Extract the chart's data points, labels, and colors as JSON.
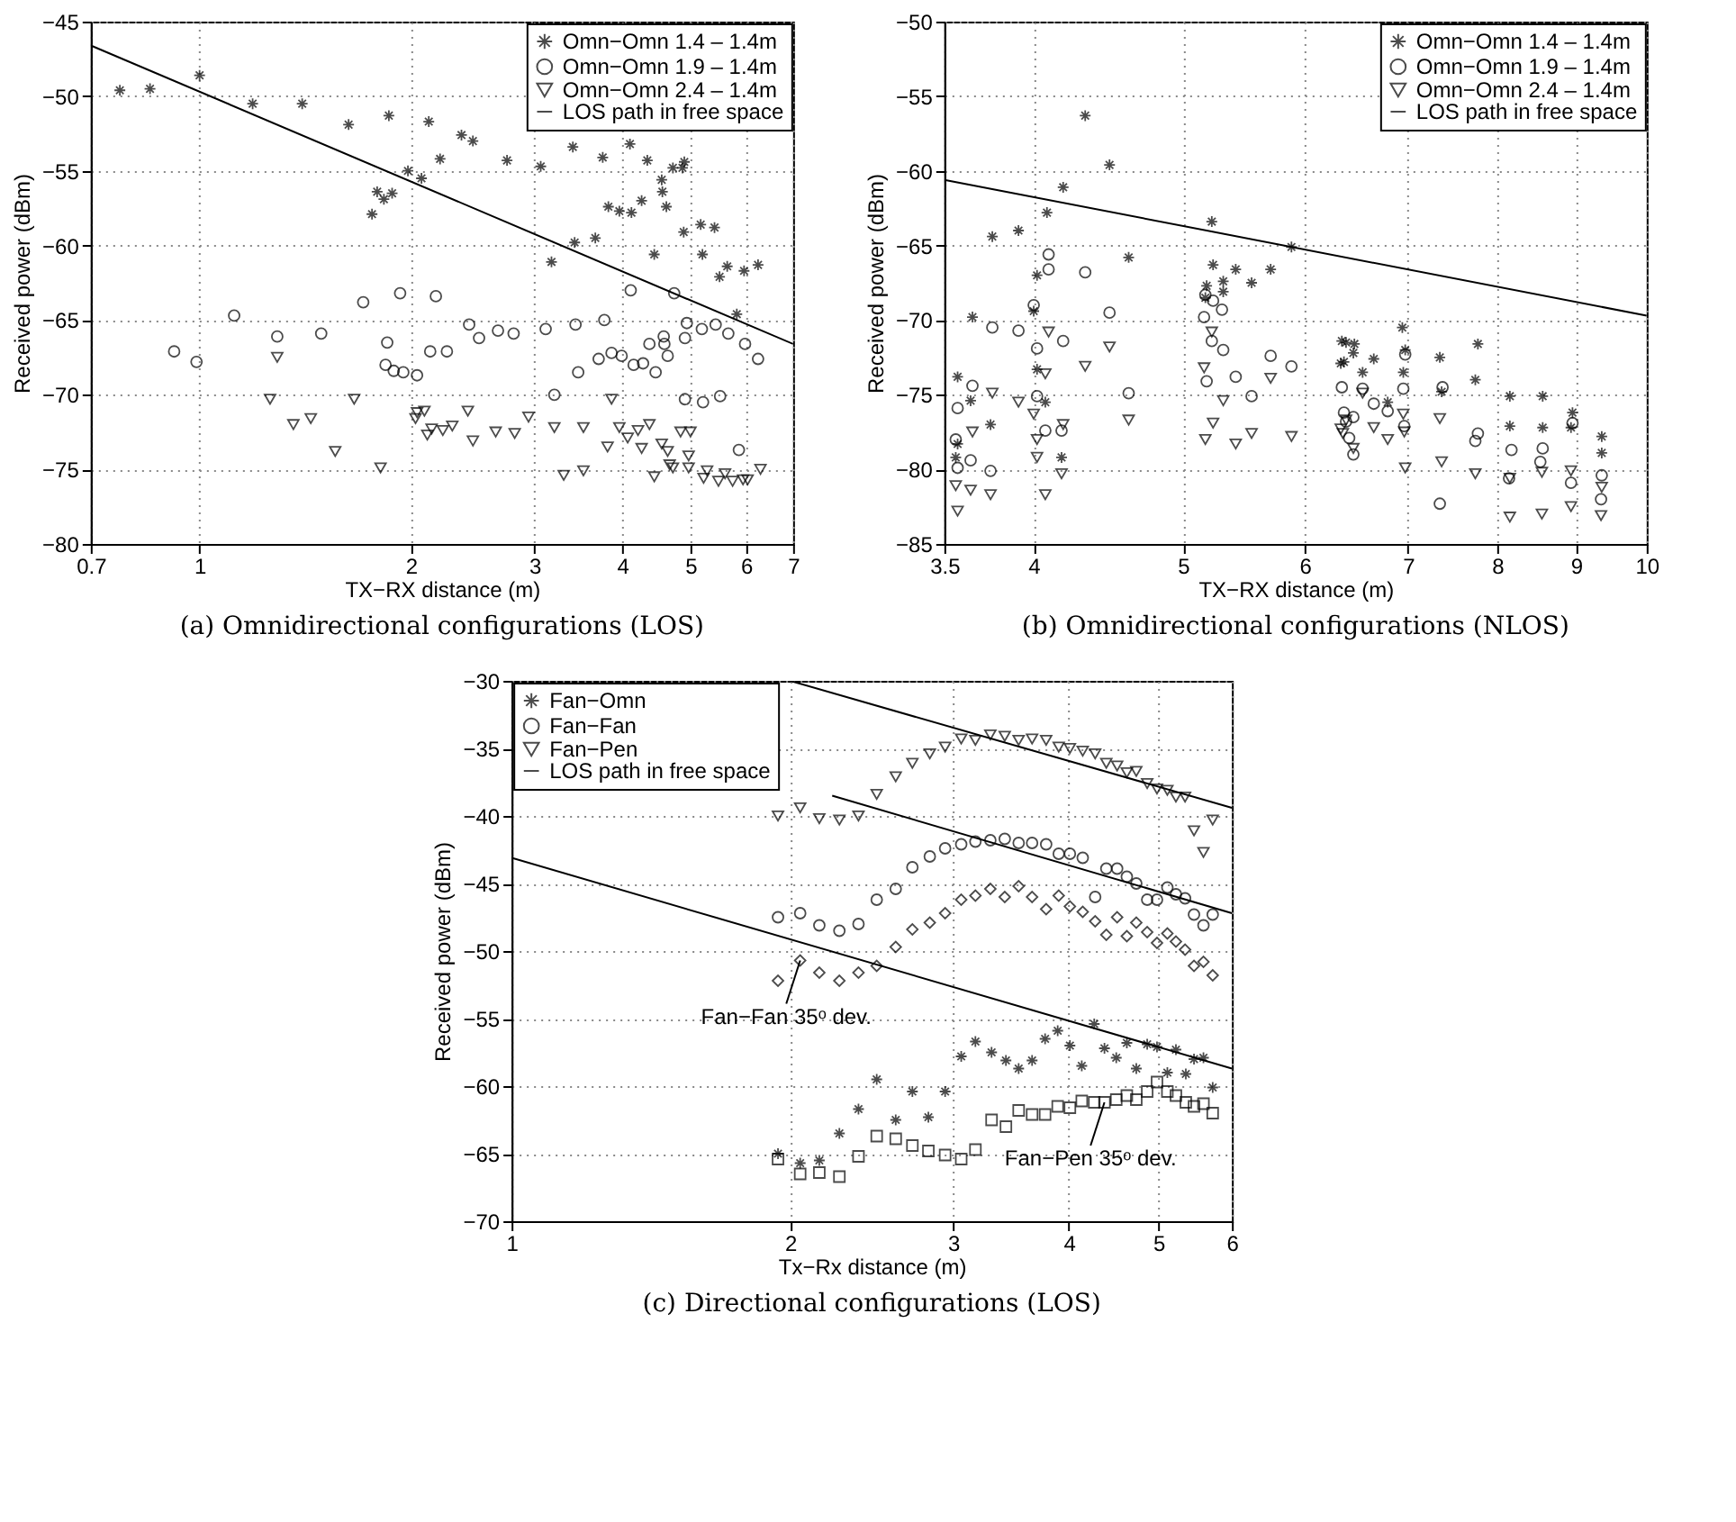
{
  "chart_data": [
    {
      "type": "scatter",
      "title": "(a) Omnidirectional configurations (LOS)",
      "xlabel": "TX−RX distance (m)",
      "ylabel": "Received power (dBm)",
      "log": "x",
      "grid": true,
      "legend": "top right",
      "xlim": [
        0.7,
        7
      ],
      "xticks": [
        0.7,
        1,
        2,
        3,
        4,
        5,
        6,
        7
      ],
      "ylim": [
        -80,
        -45
      ],
      "yticks": [
        -80,
        -75,
        -70,
        -65,
        -60,
        -55,
        -50,
        -45
      ],
      "series": [
        {
          "name": "Omn−Omn 1.4 – 1.4m",
          "color": "#000000",
          "marker": "cross",
          "x": [
            0.77,
            0.85,
            1.0,
            1.19,
            1.4,
            1.63,
            1.76,
            1.79,
            1.83,
            1.86,
            1.88,
            1.98,
            2.07,
            2.12,
            2.2,
            2.36,
            2.45,
            2.74,
            3.06,
            3.17,
            3.4,
            3.42,
            3.66,
            3.75,
            3.82,
            3.96,
            4.1,
            4.12,
            4.26,
            4.34,
            4.44,
            4.55,
            4.56,
            4.62,
            4.72,
            4.87,
            4.9,
            4.89,
            5.17,
            5.2,
            5.41,
            5.5,
            5.64,
            5.82,
            5.96,
            6.24
          ],
          "values": [
            -49.6,
            -49.5,
            -48.6,
            -50.5,
            -50.5,
            -51.9,
            -57.9,
            -56.4,
            -56.9,
            -51.3,
            -56.5,
            -55.0,
            -55.5,
            -51.7,
            -54.2,
            -52.6,
            -53.0,
            -54.3,
            -54.7,
            -61.1,
            -53.4,
            -59.8,
            -59.5,
            -54.1,
            -57.4,
            -57.7,
            -53.2,
            -57.8,
            -57.0,
            -54.3,
            -60.6,
            -55.6,
            -56.4,
            -57.4,
            -54.8,
            -54.8,
            -54.4,
            -59.1,
            -58.6,
            -60.6,
            -58.8,
            -62.1,
            -61.4,
            -64.6,
            -61.7,
            -61.3
          ]
        },
        {
          "name": "Omn−Omn 1.9 – 1.4m",
          "color": "#000000",
          "marker": "circle",
          "x": [
            0.92,
            0.99,
            1.12,
            1.29,
            1.49,
            1.71,
            1.85,
            1.84,
            1.89,
            1.95,
            1.93,
            2.04,
            2.13,
            2.17,
            2.25,
            2.42,
            2.5,
            2.66,
            2.8,
            3.11,
            3.2,
            3.43,
            3.46,
            3.7,
            3.77,
            3.86,
            3.99,
            4.11,
            4.15,
            4.28,
            4.37,
            4.46,
            4.58,
            4.59,
            4.64,
            4.74,
            4.91,
            4.94,
            4.91,
            5.19,
            5.21,
            5.43,
            5.51,
            5.66,
            5.86,
            5.98,
            6.24
          ],
          "values": [
            -67.1,
            -67.8,
            -64.7,
            -66.1,
            -65.9,
            -63.8,
            -66.5,
            -68.0,
            -68.4,
            -68.5,
            -63.2,
            -68.7,
            -67.1,
            -63.4,
            -67.1,
            -65.3,
            -66.2,
            -65.7,
            -65.9,
            -65.6,
            -70.0,
            -65.3,
            -68.5,
            -67.6,
            -65.0,
            -67.2,
            -67.4,
            -63.0,
            -68.0,
            -67.9,
            -66.6,
            -68.5,
            -66.1,
            -66.6,
            -67.4,
            -63.2,
            -66.2,
            -65.2,
            -70.3,
            -65.6,
            -70.5,
            -65.3,
            -70.1,
            -65.9,
            -73.7,
            -66.6,
            -67.6
          ]
        },
        {
          "name": "Omn−Omn 2.4 – 1.4m",
          "color": "#000000",
          "marker": "triangle",
          "x": [
            1.29,
            1.26,
            1.36,
            1.44,
            1.56,
            1.66,
            1.81,
            2.03,
            2.04,
            2.09,
            2.11,
            2.14,
            2.22,
            2.29,
            2.41,
            2.45,
            2.64,
            2.81,
            2.94,
            3.2,
            3.3,
            3.52,
            3.52,
            3.81,
            3.86,
            3.96,
            4.07,
            4.21,
            4.26,
            4.37,
            4.44,
            4.55,
            4.64,
            4.67,
            4.72,
            4.84,
            5.0,
            4.97,
            4.97,
            5.22,
            5.28,
            5.48,
            5.6,
            5.74,
            5.94,
            6.03,
            6.29
          ],
          "values": [
            -67.5,
            -70.3,
            -72.0,
            -71.6,
            -73.8,
            -70.3,
            -74.9,
            -71.6,
            -71.2,
            -71.1,
            -72.7,
            -72.3,
            -72.4,
            -72.1,
            -71.1,
            -73.1,
            -72.5,
            -72.6,
            -71.5,
            -72.2,
            -75.4,
            -72.2,
            -75.1,
            -73.5,
            -70.3,
            -72.2,
            -72.9,
            -72.4,
            -73.6,
            -72.0,
            -75.5,
            -73.3,
            -73.8,
            -74.7,
            -74.9,
            -72.5,
            -72.5,
            -74.1,
            -74.9,
            -75.6,
            -75.1,
            -75.8,
            -75.3,
            -75.8,
            -75.7,
            -75.7,
            -75.0
          ]
        },
        {
          "name": "LOS path in free space",
          "color": "#000000",
          "type": "line",
          "x": [
            0.7,
            7
          ],
          "values": [
            -46.6,
            -66.6
          ]
        }
      ]
    },
    {
      "type": "scatter",
      "title": "(b) Omnidirectional configurations (NLOS)",
      "xlabel": "TX−RX distance (m)",
      "ylabel": "Received power (dBm)",
      "log": "x",
      "grid": true,
      "legend": "top right",
      "xlim": [
        3.5,
        10
      ],
      "xticks": [
        3.5,
        4,
        5,
        6,
        7,
        8,
        9,
        10
      ],
      "ylim": [
        -85,
        -50
      ],
      "yticks": [
        -85,
        -80,
        -75,
        -70,
        -65,
        -60,
        -55,
        -50
      ],
      "series": [
        {
          "name": "Omn−Omn 1.4 – 1.4m",
          "color": "#000000",
          "marker": "cross",
          "x": [
            3.56,
            3.57,
            3.57,
            3.64,
            3.65,
            3.75,
            3.76,
            3.91,
            4.0,
            4.02,
            4.02,
            4.07,
            4.08,
            4.17,
            4.18,
            4.32,
            4.48,
            4.61,
            5.17,
            5.18,
            5.22,
            5.23,
            5.31,
            5.31,
            5.41,
            5.54,
            5.7,
            5.88,
            6.33,
            6.34,
            6.36,
            6.38,
            6.45,
            6.46,
            6.54,
            6.65,
            6.79,
            6.94,
            6.95,
            6.97,
            7.34,
            7.36,
            7.74,
            7.77,
            8.15,
            8.15,
            8.56,
            8.56,
            8.95,
            8.93,
            9.35,
            9.35
          ],
          "values": [
            -79.2,
            -78.3,
            -73.8,
            -75.4,
            -69.8,
            -77.0,
            -64.4,
            -64.0,
            -69.4,
            -67.0,
            -73.3,
            -75.5,
            -62.8,
            -79.2,
            -61.1,
            -56.3,
            -59.6,
            -65.8,
            -68.5,
            -67.7,
            -63.4,
            -66.3,
            -68.1,
            -67.4,
            -66.6,
            -67.5,
            -66.6,
            -65.1,
            -72.9,
            -71.4,
            -72.8,
            -71.5,
            -72.2,
            -71.6,
            -73.5,
            -72.6,
            -75.5,
            -70.5,
            -73.5,
            -72.0,
            -72.5,
            -74.8,
            -74.0,
            -71.6,
            -75.1,
            -77.1,
            -75.1,
            -77.2,
            -76.2,
            -77.2,
            -77.8,
            -78.9
          ]
        },
        {
          "name": "Omn−Omn 1.9 – 1.4m",
          "color": "#000000",
          "marker": "circle",
          "x": [
            3.56,
            3.57,
            3.57,
            3.64,
            3.65,
            3.75,
            3.76,
            3.91,
            4.0,
            4.02,
            4.02,
            4.07,
            4.09,
            4.09,
            4.18,
            4.17,
            4.32,
            4.48,
            4.61,
            5.16,
            5.17,
            5.18,
            5.23,
            5.22,
            5.3,
            5.31,
            5.41,
            5.54,
            5.7,
            5.88,
            6.34,
            6.36,
            6.38,
            6.41,
            6.45,
            6.45,
            6.54,
            6.65,
            6.79,
            6.95,
            6.96,
            6.97,
            7.34,
            7.37,
            7.74,
            7.77,
            8.14,
            8.17,
            8.53,
            8.56,
            8.93,
            8.95,
            9.34,
            9.35
          ],
          "values": [
            -78.0,
            -79.9,
            -75.9,
            -79.4,
            -74.4,
            -80.1,
            -70.5,
            -70.7,
            -69.0,
            -75.1,
            -71.9,
            -77.4,
            -65.6,
            -66.6,
            -71.4,
            -77.4,
            -66.8,
            -69.5,
            -74.9,
            -69.8,
            -68.3,
            -74.1,
            -68.7,
            -71.4,
            -69.3,
            -72.0,
            -73.8,
            -75.1,
            -72.4,
            -73.1,
            -74.5,
            -76.2,
            -76.8,
            -77.9,
            -76.5,
            -79.0,
            -74.6,
            -75.6,
            -76.1,
            -74.6,
            -77.1,
            -72.3,
            -82.3,
            -74.5,
            -78.1,
            -77.6,
            -80.6,
            -78.7,
            -79.5,
            -78.6,
            -80.9,
            -76.9,
            -82.0,
            -80.4
          ]
        },
        {
          "name": "Omn−Omn 2.4 – 1.4m",
          "color": "#000000",
          "marker": "triangle",
          "x": [
            3.56,
            3.57,
            3.64,
            3.65,
            3.75,
            3.76,
            3.91,
            4.0,
            4.02,
            4.02,
            4.07,
            4.07,
            4.09,
            4.17,
            4.18,
            4.32,
            4.48,
            4.61,
            5.16,
            5.17,
            5.22,
            5.23,
            5.31,
            5.41,
            5.54,
            5.7,
            5.88,
            6.33,
            6.35,
            6.38,
            6.45,
            6.54,
            6.65,
            6.79,
            6.95,
            6.96,
            6.97,
            7.34,
            7.36,
            7.74,
            8.15,
            8.15,
            8.55,
            8.55,
            8.93,
            8.93,
            9.35,
            9.34
          ],
          "values": [
            -81.1,
            -82.8,
            -81.4,
            -77.5,
            -81.7,
            -74.9,
            -75.5,
            -76.3,
            -78.0,
            -79.2,
            -73.6,
            -81.7,
            -70.8,
            -80.3,
            -77.0,
            -73.1,
            -71.8,
            -76.7,
            -73.2,
            -78.0,
            -70.8,
            -76.9,
            -75.4,
            -78.3,
            -77.6,
            -73.9,
            -77.8,
            -77.3,
            -77.6,
            -76.7,
            -78.6,
            -74.9,
            -77.2,
            -78.0,
            -76.3,
            -77.5,
            -79.9,
            -76.6,
            -79.5,
            -80.3,
            -80.6,
            -83.2,
            -80.2,
            -83.0,
            -80.1,
            -82.5,
            -81.2,
            -83.1
          ]
        },
        {
          "name": "LOS path in free space",
          "color": "#000000",
          "type": "line",
          "x": [
            3.5,
            10
          ],
          "values": [
            -60.6,
            -69.7
          ]
        }
      ]
    },
    {
      "type": "scatter",
      "title": "(c) Directional configurations (LOS)",
      "xlabel": "Tx−Rx distance (m)",
      "ylabel": "Received power (dBm)",
      "log": "x",
      "grid": true,
      "legend": "top left",
      "xlim": [
        1,
        6
      ],
      "xticks": [
        1,
        2,
        3,
        4,
        5,
        6
      ],
      "ylim": [
        -70,
        -30
      ],
      "yticks": [
        -70,
        -65,
        -60,
        -55,
        -50,
        -45,
        -40,
        -35,
        -30
      ],
      "annotations": [
        {
          "text": "Fan−Fan 35ᵒ dev.",
          "x": 2.05,
          "y": -50.7
        },
        {
          "text": "Fan−Pen 35ᵒ dev.",
          "x": 4.37,
          "y": -61.2
        }
      ],
      "series": [
        {
          "name": "Fan−Omn",
          "color": "#000000",
          "marker": "cross",
          "x": [
            1.94,
            2.05,
            2.15,
            2.26,
            2.37,
            2.48,
            2.6,
            2.71,
            2.82,
            2.94,
            3.06,
            3.17,
            3.3,
            3.42,
            3.53,
            3.65,
            3.77,
            3.89,
            4.01,
            4.13,
            4.26,
            4.37,
            4.5,
            4.62,
            4.73,
            4.86,
            4.98,
            5.11,
            5.22,
            5.35,
            5.46,
            5.59,
            5.72
          ],
          "values": [
            -65.0,
            -65.7,
            -65.5,
            -63.5,
            -61.7,
            -59.5,
            -62.5,
            -60.4,
            -62.3,
            -60.4,
            -57.8,
            -56.7,
            -57.5,
            -58.1,
            -58.7,
            -58.1,
            -56.5,
            -55.9,
            -57.0,
            -58.5,
            -55.4,
            -57.2,
            -57.9,
            -56.8,
            -58.7,
            -56.9,
            -57.1,
            -59.0,
            -57.3,
            -59.1,
            -58.0,
            -57.9,
            -60.1
          ]
        },
        {
          "name": "Fan−Fan",
          "color": "#000000",
          "marker": "circle",
          "x": [
            1.94,
            2.05,
            2.15,
            2.26,
            2.37,
            2.48,
            2.6,
            2.71,
            2.83,
            2.94,
            3.06,
            3.17,
            3.29,
            3.41,
            3.53,
            3.65,
            3.78,
            3.9,
            4.01,
            4.14,
            4.27,
            4.39,
            4.51,
            4.62,
            4.73,
            4.86,
            4.98,
            5.11,
            5.22,
            5.34,
            5.46,
            5.59,
            5.72
          ],
          "values": [
            -47.5,
            -47.2,
            -48.1,
            -48.5,
            -48.0,
            -46.2,
            -45.4,
            -43.8,
            -43.0,
            -42.4,
            -42.1,
            -41.9,
            -41.8,
            -41.7,
            -42.0,
            -42.0,
            -42.1,
            -42.8,
            -42.8,
            -43.1,
            -46.0,
            -43.9,
            -43.9,
            -44.5,
            -45.0,
            -46.2,
            -46.2,
            -45.3,
            -45.8,
            -46.1,
            -47.3,
            -48.1,
            -47.3
          ]
        },
        {
          "name": "Fan−Pen",
          "color": "#000000",
          "marker": "triangle",
          "x": [
            1.94,
            2.05,
            2.15,
            2.26,
            2.37,
            2.48,
            2.6,
            2.71,
            2.83,
            2.94,
            3.06,
            3.17,
            3.29,
            3.41,
            3.53,
            3.65,
            3.78,
            3.9,
            4.01,
            4.14,
            4.27,
            4.39,
            4.51,
            4.62,
            4.73,
            4.86,
            4.98,
            5.11,
            5.22,
            5.34,
            5.46,
            5.59,
            5.72
          ],
          "values": [
            -40.0,
            -39.4,
            -40.2,
            -40.3,
            -40.0,
            -38.4,
            -37.1,
            -36.1,
            -35.4,
            -34.9,
            -34.3,
            -34.4,
            -34.0,
            -34.1,
            -34.4,
            -34.3,
            -34.4,
            -34.9,
            -35.0,
            -35.2,
            -35.4,
            -36.1,
            -36.3,
            -36.8,
            -36.7,
            -37.6,
            -38.0,
            -38.1,
            -38.6,
            -38.6,
            -41.1,
            -42.7,
            -40.3
          ]
        },
        {
          "color": "#000000",
          "marker": "diamond",
          "x": [
            1.94,
            2.05,
            2.15,
            2.26,
            2.37,
            2.48,
            2.6,
            2.71,
            2.83,
            2.94,
            3.06,
            3.17,
            3.29,
            3.41,
            3.53,
            3.65,
            3.78,
            3.9,
            4.01,
            4.14,
            4.27,
            4.39,
            4.51,
            4.62,
            4.73,
            4.86,
            4.98,
            5.11,
            5.22,
            5.34,
            5.46,
            5.59,
            5.72
          ],
          "values": [
            -52.2,
            -50.7,
            -51.6,
            -52.2,
            -51.6,
            -51.1,
            -49.7,
            -48.4,
            -47.9,
            -47.2,
            -46.2,
            -45.9,
            -45.4,
            -46.0,
            -45.2,
            -46.0,
            -46.9,
            -45.9,
            -46.7,
            -47.1,
            -47.8,
            -48.8,
            -47.5,
            -48.9,
            -47.9,
            -48.6,
            -49.4,
            -48.7,
            -49.3,
            -49.9,
            -51.1,
            -50.8,
            -51.8
          ]
        },
        {
          "color": "#000000",
          "marker": "square",
          "x": [
            1.94,
            2.05,
            2.15,
            2.26,
            2.37,
            2.48,
            2.6,
            2.71,
            2.82,
            2.94,
            3.06,
            3.17,
            3.3,
            3.42,
            3.53,
            3.65,
            3.77,
            3.89,
            4.01,
            4.13,
            4.26,
            4.37,
            4.5,
            4.62,
            4.73,
            4.86,
            4.98,
            5.11,
            5.22,
            5.35,
            5.46,
            5.59,
            5.72
          ],
          "values": [
            -65.4,
            -66.5,
            -66.4,
            -66.7,
            -65.2,
            -63.7,
            -63.9,
            -64.4,
            -64.8,
            -65.1,
            -65.4,
            -64.7,
            -62.5,
            -63.0,
            -61.8,
            -62.1,
            -62.1,
            -61.5,
            -61.6,
            -61.1,
            -61.2,
            -61.2,
            -61.0,
            -60.7,
            -61.0,
            -60.4,
            -59.7,
            -60.4,
            -60.7,
            -61.2,
            -61.5,
            -61.3,
            -62.0
          ]
        },
        {
          "name": "LOS path in free space",
          "color": "#000000",
          "type": "line",
          "x": [
            2,
            6
          ],
          "values": [
            -30,
            -39.4
          ]
        },
        {
          "color": "#000000",
          "type": "line",
          "x": [
            2.22,
            6
          ],
          "values": [
            -38.5,
            -47.2
          ]
        },
        {
          "color": "#000000",
          "type": "line",
          "x": [
            1,
            6
          ],
          "values": [
            -43.1,
            -58.7
          ]
        }
      ]
    }
  ]
}
